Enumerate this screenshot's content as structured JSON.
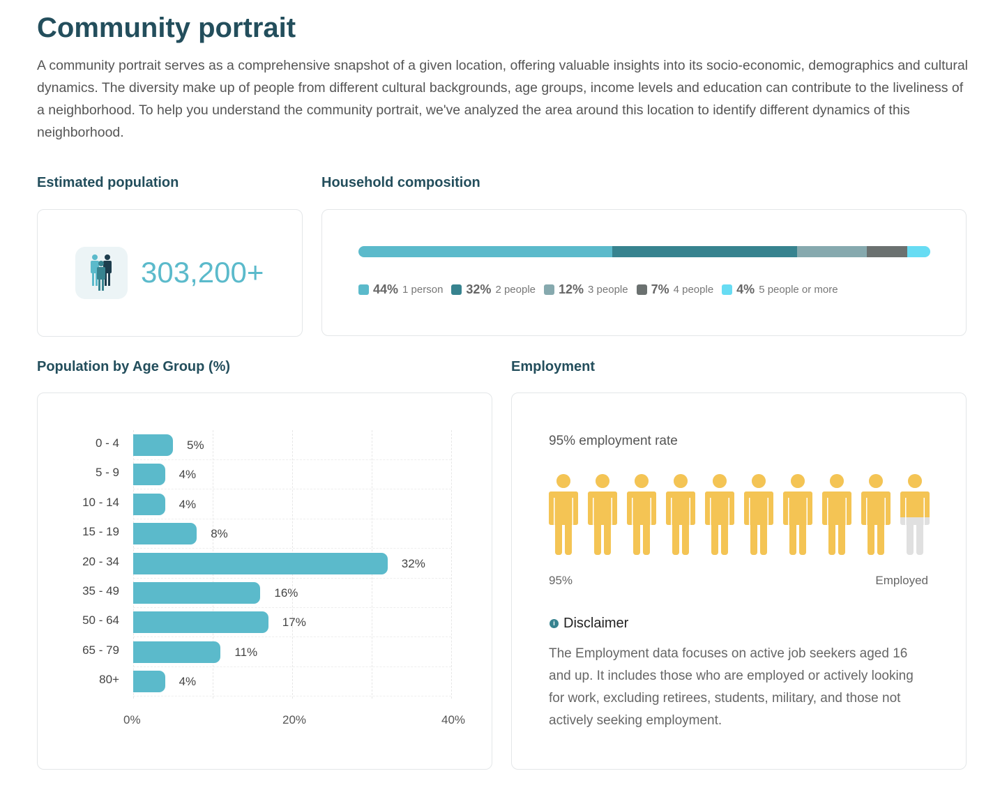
{
  "title": "Community portrait",
  "intro": "A community portrait serves as a comprehensive snapshot of a given location, offering valuable insights into its socio-economic, demographics and cultural dynamics. The diversity make up of people from different cultural backgrounds, age groups, income levels and education can contribute to the liveliness of a neighborhood. To help you understand the community portrait, we've analyzed the area around this location to identify different dynamics of this neighborhood.",
  "population": {
    "heading": "Estimated population",
    "value": "303,200+",
    "icon": "people-group-icon"
  },
  "household": {
    "heading": "Household composition",
    "segments": [
      {
        "pct": 44,
        "label_pct": "44%",
        "label": "1 person",
        "color": "#5bbacb"
      },
      {
        "pct": 32,
        "label_pct": "32%",
        "label": "2 people",
        "color": "#37838f"
      },
      {
        "pct": 12,
        "label_pct": "12%",
        "label": "3 people",
        "color": "#86a9ae"
      },
      {
        "pct": 7,
        "label_pct": "7%",
        "label": "4 people",
        "color": "#6b7170"
      },
      {
        "pct": 4,
        "label_pct": "4%",
        "label": "5 people or more",
        "color": "#67dcf3"
      }
    ]
  },
  "age": {
    "heading": "Population by Age Group (%)"
  },
  "chart_data": {
    "type": "bar",
    "orientation": "horizontal",
    "title": "Population by Age Group (%)",
    "categories": [
      "0 - 4",
      "5 - 9",
      "10 - 14",
      "15 - 19",
      "20 - 34",
      "35 - 49",
      "50 - 64",
      "65 - 79",
      "80+"
    ],
    "values": [
      5,
      4,
      4,
      8,
      32,
      16,
      17,
      11,
      4
    ],
    "data_labels": [
      "5%",
      "4%",
      "4%",
      "8%",
      "32%",
      "16%",
      "17%",
      "11%",
      "4%"
    ],
    "xlim": [
      0,
      40
    ],
    "xticks": [
      "0%",
      "20%",
      "40%"
    ],
    "grid": true,
    "color": "#5bbacb"
  },
  "employment": {
    "heading": "Employment",
    "rate_text": "95% employment rate",
    "rate": 95,
    "left_label": "95%",
    "right_label": "Employed",
    "employed_color": "#f4c454",
    "unemployed_color": "#e0e0e0",
    "disclaimer_title": "Disclaimer",
    "disclaimer": "The Employment data focuses on active job seekers aged 16 and up. It includes those who are employed or actively looking for work, excluding retirees, students, military, and those not actively seeking employment."
  }
}
